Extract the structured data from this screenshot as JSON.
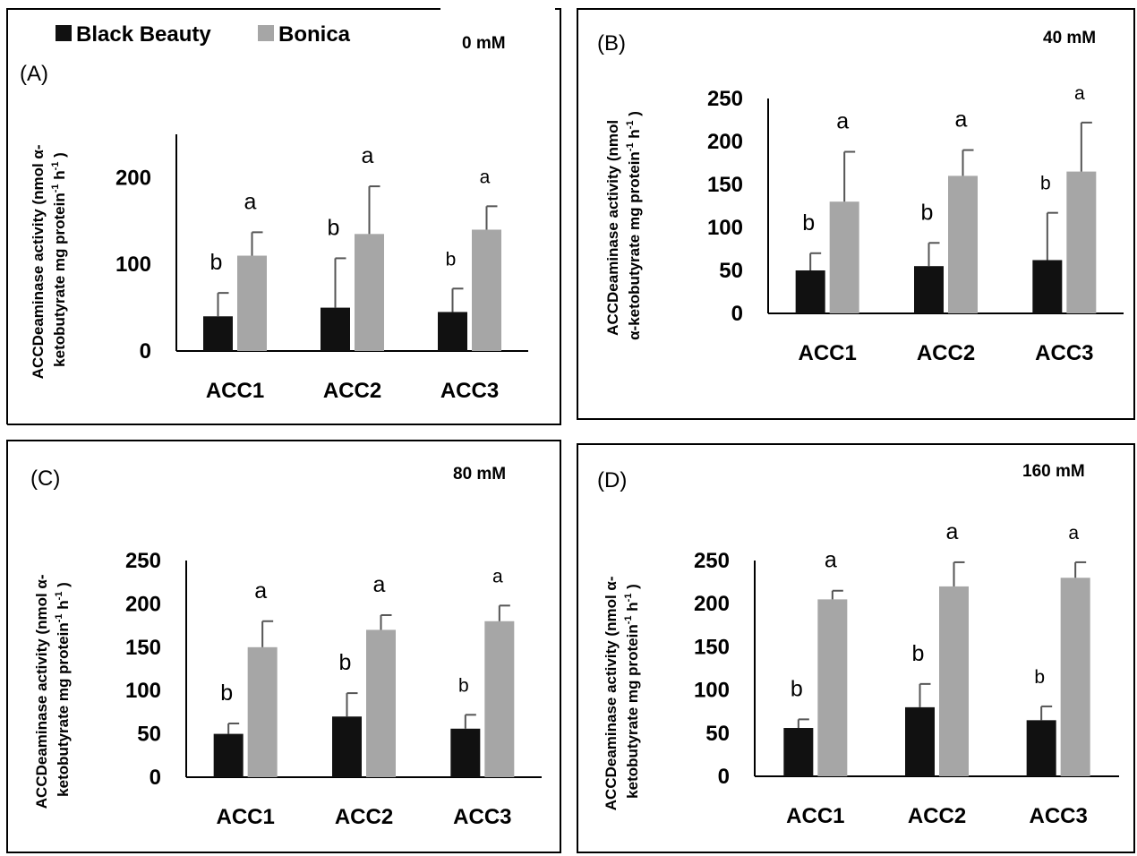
{
  "legend": {
    "items": [
      {
        "label": "Black Beauty",
        "color": "#111111"
      },
      {
        "label": "Bonica",
        "color": "#a6a6a6"
      }
    ]
  },
  "chart_data": [
    {
      "type": "bar",
      "panel": "(A)",
      "condition": "0 mM",
      "ylabel_lines": [
        "ACCDeaminase activity (nmol α-",
        "ketobutyrate mg protein-1 h-1)"
      ],
      "categories": [
        "ACC1",
        "ACC2",
        "ACC3"
      ],
      "ylim": [
        0,
        250
      ],
      "yticks": [
        0,
        100,
        200
      ],
      "series": [
        {
          "name": "Black Beauty",
          "values": [
            40,
            50,
            45
          ],
          "errors": [
            27,
            57,
            27
          ],
          "letters": [
            "b",
            "b",
            "b"
          ]
        },
        {
          "name": "Bonica",
          "values": [
            110,
            135,
            140
          ],
          "errors": [
            27,
            55,
            27
          ],
          "letters": [
            "a",
            "a",
            "a"
          ]
        }
      ]
    },
    {
      "type": "bar",
      "panel": "(B)",
      "condition": "40 mM",
      "ylabel_lines": [
        "ACCDeaminase activity (nmol",
        "α-ketobutyrate mg protein-1 h-1)"
      ],
      "categories": [
        "ACC1",
        "ACC2",
        "ACC3"
      ],
      "ylim": [
        0,
        250
      ],
      "yticks": [
        0,
        50,
        100,
        150,
        200,
        250
      ],
      "series": [
        {
          "name": "Black Beauty",
          "values": [
            50,
            55,
            62
          ],
          "errors": [
            20,
            27,
            55
          ],
          "letters": [
            "b",
            "b",
            "b"
          ]
        },
        {
          "name": "Bonica",
          "values": [
            130,
            160,
            165
          ],
          "errors": [
            58,
            30,
            57
          ],
          "letters": [
            "a",
            "a",
            "a"
          ]
        }
      ]
    },
    {
      "type": "bar",
      "panel": "(C)",
      "condition": "80 mM",
      "ylabel_lines": [
        "ACCDeaminase activity (nmol α-",
        "ketobutyrate mg protein-1 h-1)"
      ],
      "categories": [
        "ACC1",
        "ACC2",
        "ACC3"
      ],
      "ylim": [
        0,
        250
      ],
      "yticks": [
        0,
        50,
        100,
        150,
        200,
        250
      ],
      "series": [
        {
          "name": "Black Beauty",
          "values": [
            50,
            70,
            56
          ],
          "errors": [
            12,
            27,
            16
          ],
          "letters": [
            "b",
            "b",
            "b"
          ]
        },
        {
          "name": "Bonica",
          "values": [
            150,
            170,
            180
          ],
          "errors": [
            30,
            17,
            18
          ],
          "letters": [
            "a",
            "a",
            "a"
          ]
        }
      ]
    },
    {
      "type": "bar",
      "panel": "(D)",
      "condition": "160 mM",
      "ylabel_lines": [
        "ACCDeaminase activity (nmol α-",
        "ketobutyrate mg protein-1 h-1)"
      ],
      "categories": [
        "ACC1",
        "ACC2",
        "ACC3"
      ],
      "ylim": [
        0,
        250
      ],
      "yticks": [
        0,
        50,
        100,
        150,
        200,
        250
      ],
      "series": [
        {
          "name": "Black Beauty",
          "values": [
            56,
            80,
            65
          ],
          "errors": [
            10,
            27,
            16
          ],
          "letters": [
            "b",
            "b",
            "b"
          ]
        },
        {
          "name": "Bonica",
          "values": [
            205,
            220,
            230
          ],
          "errors": [
            10,
            28,
            18
          ],
          "letters": [
            "a",
            "a",
            "a"
          ]
        }
      ]
    }
  ]
}
